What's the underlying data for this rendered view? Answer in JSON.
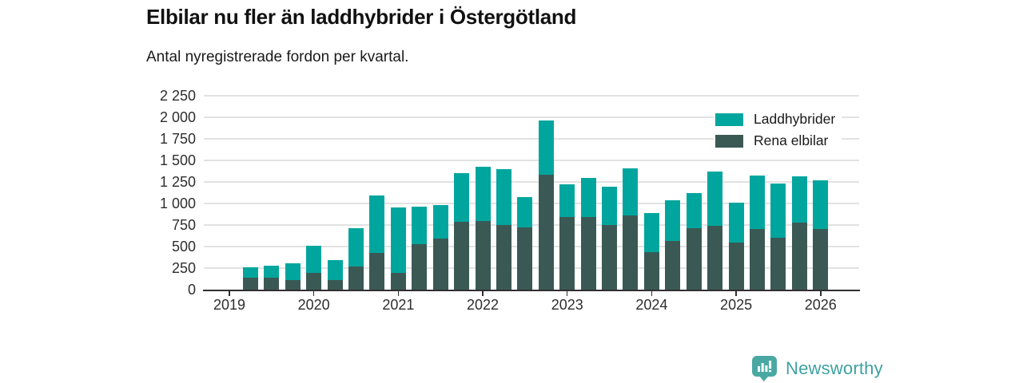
{
  "header": {
    "title": "Elbilar nu fler än laddhybrider i Östergötland",
    "subtitle": "Antal nyregistrerade fordon per kvartal."
  },
  "chart_data": {
    "type": "bar",
    "stacked": true,
    "title": "Elbilar nu fler än laddhybrider i Östergötland",
    "subtitle": "Antal nyregistrerade fordon per kvartal.",
    "x": [
      "2019 Q2",
      "2019 Q3",
      "2019 Q4",
      "2020 Q1",
      "2020 Q2",
      "2020 Q3",
      "2020 Q4",
      "2021 Q1",
      "2021 Q2",
      "2021 Q3",
      "2021 Q4",
      "2022 Q1",
      "2022 Q2",
      "2022 Q3",
      "2022 Q4",
      "2023 Q1",
      "2023 Q2",
      "2023 Q3",
      "2023 Q4",
      "2024 Q1",
      "2024 Q2",
      "2024 Q3",
      "2024 Q4",
      "2025 Q1",
      "2025 Q2",
      "2025 Q3",
      "2025 Q4",
      "2026 Q1"
    ],
    "series": [
      {
        "name": "Rena elbilar",
        "color": "#3b5954",
        "values": [
          135,
          140,
          110,
          190,
          115,
          270,
          430,
          195,
          530,
          595,
          785,
          800,
          750,
          720,
          1330,
          840,
          845,
          750,
          865,
          435,
          565,
          715,
          745,
          545,
          705,
          605,
          775,
          705
        ]
      },
      {
        "name": "Laddhybrider",
        "color": "#00a69e",
        "values": [
          125,
          135,
          195,
          315,
          230,
          445,
          665,
          760,
          435,
          385,
          570,
          630,
          650,
          350,
          630,
          385,
          450,
          445,
          545,
          450,
          475,
          405,
          625,
          465,
          620,
          625,
          540,
          565
        ]
      }
    ],
    "legend": [
      {
        "label": "Laddhybrider",
        "color": "#00a69e"
      },
      {
        "label": "Rena elbilar",
        "color": "#3b5954"
      }
    ],
    "ylim": [
      0,
      2250
    ],
    "yticks": [
      "0",
      "250",
      "500",
      "750",
      "1 000",
      "1 250",
      "1 500",
      "1 750",
      "2 000",
      "2 250"
    ],
    "xticks": [
      "2019",
      "2020",
      "2021",
      "2022",
      "2023",
      "2024",
      "2025",
      "2026"
    ],
    "grid": "horizontal",
    "legend_position": "top-right"
  },
  "footer": {
    "brand": "Newsworthy"
  }
}
